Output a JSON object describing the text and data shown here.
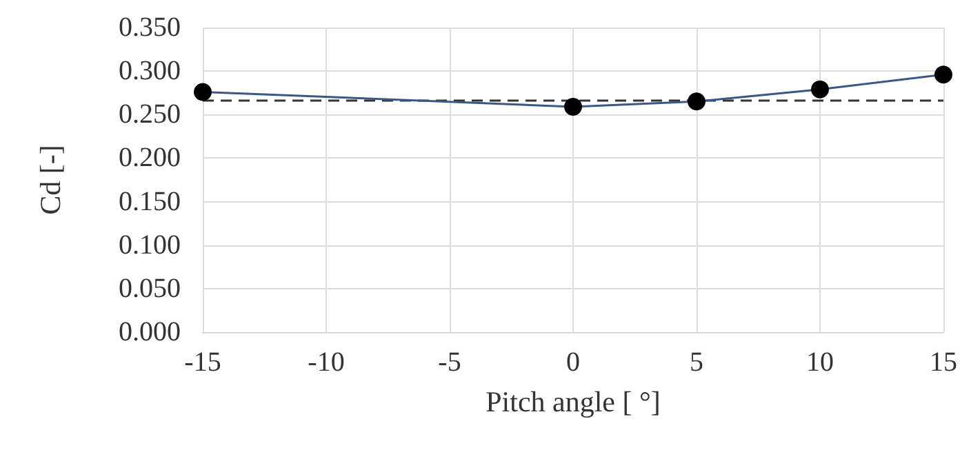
{
  "chart_data": {
    "type": "line",
    "xlabel": "Pitch angle [ °]",
    "ylabel": "Cd [-]",
    "x": [
      -15,
      0,
      5,
      10,
      15
    ],
    "series": [
      {
        "color": "#3b5688",
        "values": [
          0.276,
          0.259,
          0.265,
          0.279,
          0.296
        ]
      }
    ],
    "xlim": [
      -15,
      15
    ],
    "xticks": [
      -15,
      -10,
      -5,
      0,
      5,
      10,
      15
    ],
    "ylim": [
      0,
      0.35
    ],
    "yticks": [
      {
        "value": 0,
        "label": "0.000"
      },
      {
        "value": 0.05,
        "label": "0.050"
      },
      {
        "value": 0.1,
        "label": "0.100"
      },
      {
        "value": 0.15,
        "label": "0.150"
      },
      {
        "value": 0.2,
        "label": "0.200"
      },
      {
        "value": 0.25,
        "label": "0.250"
      },
      {
        "value": 0.3,
        "label": "0.300"
      },
      {
        "value": 0.35,
        "label": "0.350"
      }
    ],
    "ref_lines": [
      {
        "axis": "y",
        "value": 0.266,
        "color": "#333333",
        "line_style": "dashed"
      }
    ],
    "grid": true,
    "marker": "circle"
  }
}
